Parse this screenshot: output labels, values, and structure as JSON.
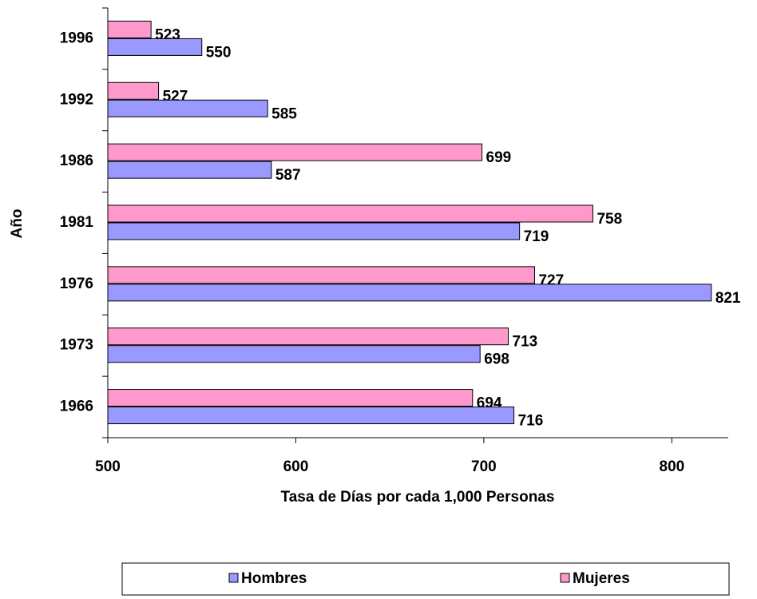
{
  "chart_data": {
    "type": "bar",
    "orientation": "horizontal",
    "x_label": "Tasa de Días por cada 1,000 Personas",
    "y_label": "Año",
    "categories": [
      "1996",
      "1992",
      "1986",
      "1981",
      "1976",
      "1973",
      "1966"
    ],
    "series": [
      {
        "name": "Mujeres",
        "color": "#ff99cc",
        "values": [
          523,
          527,
          699,
          758,
          727,
          713,
          694
        ]
      },
      {
        "name": "Hombres",
        "color": "#9999ff",
        "values": [
          550,
          585,
          587,
          719,
          821,
          698,
          716
        ]
      }
    ],
    "xlim": [
      500,
      830
    ],
    "xticks": [
      500,
      600,
      700,
      800
    ],
    "legend": "bottom",
    "legend_order": [
      "Hombres",
      "Mujeres"
    ]
  }
}
